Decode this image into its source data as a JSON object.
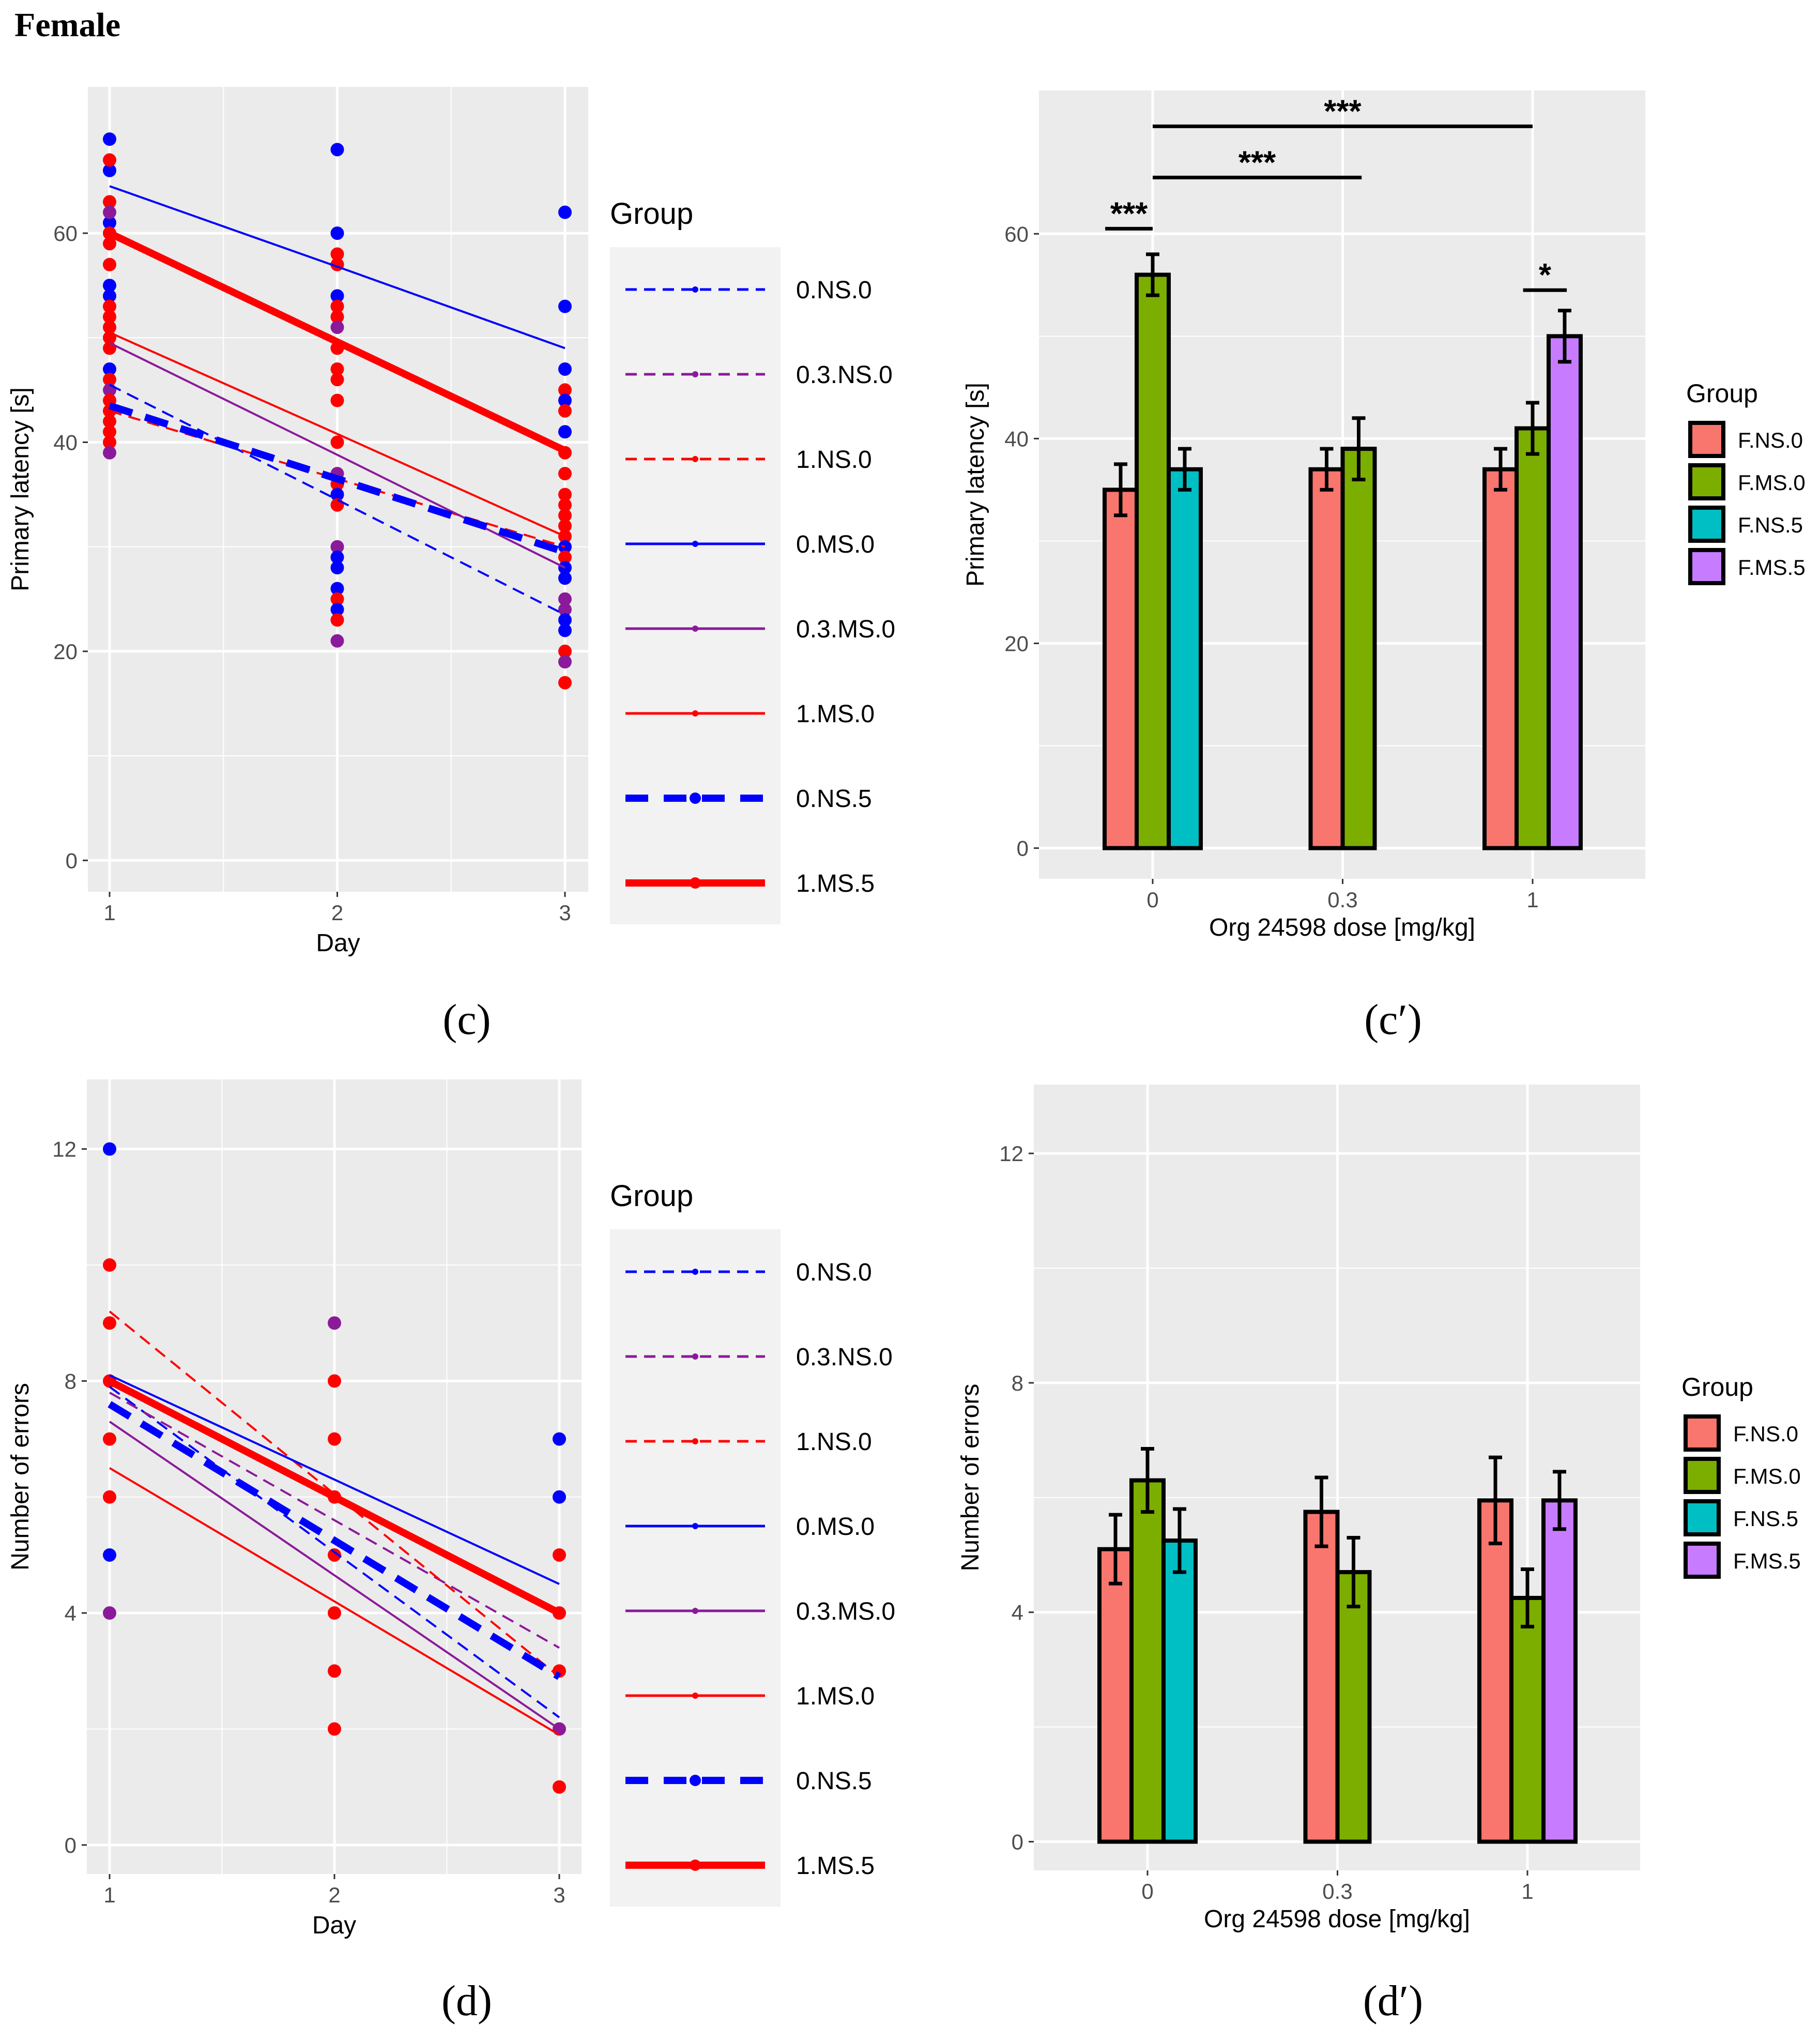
{
  "figure_title": "Female",
  "captions": [
    "(c)",
    "(c′)",
    "(d)",
    "(d′)"
  ],
  "legend_title": "Group",
  "colors": {
    "panel_bg": "#ebebeb",
    "grid": "#ffffff",
    "red": "#ff0000",
    "blue": "#0000ff",
    "purple": "#8b1a9a",
    "F.NS.0": "#f8766d",
    "F.MS.0": "#7cae00",
    "F.NS.5": "#00bfc4",
    "F.MS.5": "#c77cff"
  },
  "chart_data": [
    {
      "id": "c",
      "type": "line",
      "xlabel": "Day",
      "ylabel": "Primary latency [s]",
      "x": [
        1,
        2,
        3
      ],
      "x_ticks": [
        "1",
        "2",
        "3"
      ],
      "y_ticks": [
        "0",
        "20",
        "40",
        "60"
      ],
      "ylim": [
        -3,
        74
      ],
      "legend": {
        "title": "Group",
        "position": "right"
      },
      "series": [
        {
          "name": "0.NS.0",
          "color": "blue",
          "style": "dashed",
          "width": "thin",
          "values": [
            45.5,
            34.5,
            23.5
          ]
        },
        {
          "name": "0.3.NS.0",
          "color": "purple",
          "style": "dashed",
          "width": "thin",
          "values": [
            null,
            null,
            null
          ]
        },
        {
          "name": "1.NS.0",
          "color": "red",
          "style": "dashed",
          "width": "thin",
          "values": [
            43,
            36.5,
            30
          ]
        },
        {
          "name": "0.MS.0",
          "color": "blue",
          "style": "solid",
          "width": "thin",
          "values": [
            64.5,
            56.8,
            49
          ]
        },
        {
          "name": "0.3.MS.0",
          "color": "purple",
          "style": "solid",
          "width": "thin",
          "values": [
            49.5,
            38.8,
            28
          ]
        },
        {
          "name": "1.MS.0",
          "color": "red",
          "style": "solid",
          "width": "thin",
          "values": [
            50.5,
            40.8,
            31
          ]
        },
        {
          "name": "0.NS.5",
          "color": "blue",
          "style": "dashed",
          "width": "thick",
          "values": [
            43.5,
            36.5,
            29.5
          ]
        },
        {
          "name": "1.MS.5",
          "color": "red",
          "style": "solid",
          "width": "thick",
          "values": [
            60,
            49.6,
            39.2
          ]
        }
      ],
      "points": [
        {
          "x": 1,
          "y": 69,
          "c": "blue"
        },
        {
          "x": 1,
          "y": 66,
          "c": "blue"
        },
        {
          "x": 1,
          "y": 67,
          "c": "red"
        },
        {
          "x": 1,
          "y": 63,
          "c": "red"
        },
        {
          "x": 1,
          "y": 61,
          "c": "blue"
        },
        {
          "x": 1,
          "y": 62,
          "c": "purple"
        },
        {
          "x": 1,
          "y": 60,
          "c": "red"
        },
        {
          "x": 1,
          "y": 59,
          "c": "red"
        },
        {
          "x": 1,
          "y": 57,
          "c": "red"
        },
        {
          "x": 1,
          "y": 55,
          "c": "blue"
        },
        {
          "x": 1,
          "y": 54,
          "c": "blue"
        },
        {
          "x": 1,
          "y": 53,
          "c": "red"
        },
        {
          "x": 1,
          "y": 52,
          "c": "red"
        },
        {
          "x": 1,
          "y": 51,
          "c": "red"
        },
        {
          "x": 1,
          "y": 50,
          "c": "red"
        },
        {
          "x": 1,
          "y": 49,
          "c": "red"
        },
        {
          "x": 1,
          "y": 47,
          "c": "blue"
        },
        {
          "x": 1,
          "y": 46,
          "c": "red"
        },
        {
          "x": 1,
          "y": 45,
          "c": "purple"
        },
        {
          "x": 1,
          "y": 44,
          "c": "red"
        },
        {
          "x": 1,
          "y": 43,
          "c": "red"
        },
        {
          "x": 1,
          "y": 42,
          "c": "red"
        },
        {
          "x": 1,
          "y": 41,
          "c": "red"
        },
        {
          "x": 1,
          "y": 40,
          "c": "red"
        },
        {
          "x": 1,
          "y": 39,
          "c": "purple"
        },
        {
          "x": 2,
          "y": 68,
          "c": "blue"
        },
        {
          "x": 2,
          "y": 60,
          "c": "blue"
        },
        {
          "x": 2,
          "y": 58,
          "c": "red"
        },
        {
          "x": 2,
          "y": 57,
          "c": "red"
        },
        {
          "x": 2,
          "y": 54,
          "c": "blue"
        },
        {
          "x": 2,
          "y": 53,
          "c": "red"
        },
        {
          "x": 2,
          "y": 52,
          "c": "red"
        },
        {
          "x": 2,
          "y": 51,
          "c": "purple"
        },
        {
          "x": 2,
          "y": 49,
          "c": "red"
        },
        {
          "x": 2,
          "y": 47,
          "c": "red"
        },
        {
          "x": 2,
          "y": 46,
          "c": "red"
        },
        {
          "x": 2,
          "y": 44,
          "c": "red"
        },
        {
          "x": 2,
          "y": 40,
          "c": "red"
        },
        {
          "x": 2,
          "y": 37,
          "c": "purple"
        },
        {
          "x": 2,
          "y": 36,
          "c": "red"
        },
        {
          "x": 2,
          "y": 35,
          "c": "blue"
        },
        {
          "x": 2,
          "y": 34,
          "c": "red"
        },
        {
          "x": 2,
          "y": 30,
          "c": "purple"
        },
        {
          "x": 2,
          "y": 29,
          "c": "blue"
        },
        {
          "x": 2,
          "y": 28,
          "c": "blue"
        },
        {
          "x": 2,
          "y": 26,
          "c": "blue"
        },
        {
          "x": 2,
          "y": 25,
          "c": "red"
        },
        {
          "x": 2,
          "y": 24,
          "c": "blue"
        },
        {
          "x": 2,
          "y": 23,
          "c": "red"
        },
        {
          "x": 2,
          "y": 21,
          "c": "purple"
        },
        {
          "x": 3,
          "y": 62,
          "c": "blue"
        },
        {
          "x": 3,
          "y": 53,
          "c": "blue"
        },
        {
          "x": 3,
          "y": 47,
          "c": "blue"
        },
        {
          "x": 3,
          "y": 45,
          "c": "red"
        },
        {
          "x": 3,
          "y": 44,
          "c": "blue"
        },
        {
          "x": 3,
          "y": 43,
          "c": "red"
        },
        {
          "x": 3,
          "y": 41,
          "c": "blue"
        },
        {
          "x": 3,
          "y": 39,
          "c": "red"
        },
        {
          "x": 3,
          "y": 37,
          "c": "red"
        },
        {
          "x": 3,
          "y": 35,
          "c": "red"
        },
        {
          "x": 3,
          "y": 34,
          "c": "red"
        },
        {
          "x": 3,
          "y": 33,
          "c": "red"
        },
        {
          "x": 3,
          "y": 32,
          "c": "red"
        },
        {
          "x": 3,
          "y": 31,
          "c": "red"
        },
        {
          "x": 3,
          "y": 30,
          "c": "blue"
        },
        {
          "x": 3,
          "y": 29,
          "c": "red"
        },
        {
          "x": 3,
          "y": 28,
          "c": "blue"
        },
        {
          "x": 3,
          "y": 27,
          "c": "blue"
        },
        {
          "x": 3,
          "y": 25,
          "c": "purple"
        },
        {
          "x": 3,
          "y": 24,
          "c": "purple"
        },
        {
          "x": 3,
          "y": 23,
          "c": "blue"
        },
        {
          "x": 3,
          "y": 22,
          "c": "blue"
        },
        {
          "x": 3,
          "y": 20,
          "c": "red"
        },
        {
          "x": 3,
          "y": 19,
          "c": "purple"
        },
        {
          "x": 3,
          "y": 17,
          "c": "red"
        }
      ]
    },
    {
      "id": "c_prime",
      "type": "bar",
      "xlabel": "Org 24598 dose [mg/kg]",
      "ylabel": "Primary latency [s]",
      "categories": [
        "0",
        "0.3",
        "1"
      ],
      "y_ticks": [
        "0",
        "20",
        "40",
        "60"
      ],
      "ylim": [
        -3,
        74
      ],
      "legend": {
        "title": "Group",
        "position": "right",
        "entries": [
          "F.NS.0",
          "F.MS.0",
          "F.NS.5",
          "F.MS.5"
        ]
      },
      "bars": [
        {
          "category": "0",
          "group": "F.NS.0",
          "value": 35,
          "err": 2.5
        },
        {
          "category": "0",
          "group": "F.MS.0",
          "value": 56,
          "err": 2
        },
        {
          "category": "0",
          "group": "F.NS.5",
          "value": 37,
          "err": 2
        },
        {
          "category": "0.3",
          "group": "F.NS.0",
          "value": 37,
          "err": 2
        },
        {
          "category": "0.3",
          "group": "F.MS.0",
          "value": 39,
          "err": 3
        },
        {
          "category": "1",
          "group": "F.NS.0",
          "value": 37,
          "err": 2
        },
        {
          "category": "1",
          "group": "F.MS.0",
          "value": 41,
          "err": 2.5
        },
        {
          "category": "1",
          "group": "F.MS.5",
          "value": 50,
          "err": 2.5
        }
      ],
      "annotations": [
        {
          "label": "***",
          "x_from": -0.25,
          "x_to": 0.0,
          "y": 60.5
        },
        {
          "label": "***",
          "x_from": 0.0,
          "x_to": 1.1,
          "y": 65.5
        },
        {
          "label": "***",
          "x_from": 0.0,
          "x_to": 2.0,
          "y": 70.5
        },
        {
          "label": "*",
          "x_from": 1.95,
          "x_to": 2.18,
          "y": 54.5
        }
      ]
    },
    {
      "id": "d",
      "type": "line",
      "xlabel": "Day",
      "ylabel": "Number of errors",
      "x": [
        1,
        2,
        3
      ],
      "x_ticks": [
        "1",
        "2",
        "3"
      ],
      "y_ticks": [
        "0",
        "4",
        "8",
        "12"
      ],
      "ylim": [
        -0.5,
        13.2
      ],
      "legend": {
        "title": "Group",
        "position": "right"
      },
      "series": [
        {
          "name": "0.NS.0",
          "color": "blue",
          "style": "dashed",
          "width": "thin",
          "values": [
            7.9,
            5.05,
            2.2
          ]
        },
        {
          "name": "0.3.NS.0",
          "color": "purple",
          "style": "dashed",
          "width": "thin",
          "values": [
            7.8,
            5.6,
            3.4
          ]
        },
        {
          "name": "1.NS.0",
          "color": "red",
          "style": "dashed",
          "width": "thin",
          "values": [
            9.2,
            6.05,
            2.9
          ]
        },
        {
          "name": "0.MS.0",
          "color": "blue",
          "style": "solid",
          "width": "thin",
          "values": [
            8.1,
            6.3,
            4.5
          ]
        },
        {
          "name": "0.3.MS.0",
          "color": "purple",
          "style": "solid",
          "width": "thin",
          "values": [
            7.3,
            4.65,
            2.0
          ]
        },
        {
          "name": "1.MS.0",
          "color": "red",
          "style": "solid",
          "width": "thin",
          "values": [
            6.5,
            4.2,
            1.9
          ]
        },
        {
          "name": "0.NS.5",
          "color": "blue",
          "style": "dashed",
          "width": "thick",
          "values": [
            7.6,
            5.25,
            2.9
          ]
        },
        {
          "name": "1.MS.5",
          "color": "red",
          "style": "solid",
          "width": "thick",
          "values": [
            8.0,
            6.0,
            4.0
          ]
        }
      ],
      "points": [
        {
          "x": 1,
          "y": 12,
          "c": "blue"
        },
        {
          "x": 1,
          "y": 10,
          "c": "red"
        },
        {
          "x": 1,
          "y": 9,
          "c": "red"
        },
        {
          "x": 1,
          "y": 8,
          "c": "red"
        },
        {
          "x": 1,
          "y": 7,
          "c": "red"
        },
        {
          "x": 1,
          "y": 6,
          "c": "red"
        },
        {
          "x": 1,
          "y": 5,
          "c": "blue"
        },
        {
          "x": 1,
          "y": 4,
          "c": "purple"
        },
        {
          "x": 2,
          "y": 9,
          "c": "purple"
        },
        {
          "x": 2,
          "y": 8,
          "c": "red"
        },
        {
          "x": 2,
          "y": 7,
          "c": "red"
        },
        {
          "x": 2,
          "y": 6,
          "c": "red"
        },
        {
          "x": 2,
          "y": 5,
          "c": "red"
        },
        {
          "x": 2,
          "y": 4,
          "c": "red"
        },
        {
          "x": 2,
          "y": 3,
          "c": "red"
        },
        {
          "x": 2,
          "y": 2,
          "c": "red"
        },
        {
          "x": 3,
          "y": 7,
          "c": "blue"
        },
        {
          "x": 3,
          "y": 6,
          "c": "blue"
        },
        {
          "x": 3,
          "y": 5,
          "c": "red"
        },
        {
          "x": 3,
          "y": 4,
          "c": "red"
        },
        {
          "x": 3,
          "y": 3,
          "c": "red"
        },
        {
          "x": 3,
          "y": 2,
          "c": "purple"
        },
        {
          "x": 3,
          "y": 1,
          "c": "red"
        }
      ]
    },
    {
      "id": "d_prime",
      "type": "bar",
      "xlabel": "Org 24598 dose [mg/kg]",
      "ylabel": "Number of errors",
      "categories": [
        "0",
        "0.3",
        "1"
      ],
      "y_ticks": [
        "0",
        "4",
        "8",
        "12"
      ],
      "ylim": [
        -0.5,
        13.2
      ],
      "legend": {
        "title": "Group",
        "position": "right",
        "entries": [
          "F.NS.0",
          "F.MS.0",
          "F.NS.5",
          "F.MS.5"
        ]
      },
      "bars": [
        {
          "category": "0",
          "group": "F.NS.0",
          "value": 5.1,
          "err": 0.6
        },
        {
          "category": "0",
          "group": "F.MS.0",
          "value": 6.3,
          "err": 0.55
        },
        {
          "category": "0",
          "group": "F.NS.5",
          "value": 5.25,
          "err": 0.55
        },
        {
          "category": "0.3",
          "group": "F.NS.0",
          "value": 5.75,
          "err": 0.6
        },
        {
          "category": "0.3",
          "group": "F.MS.0",
          "value": 4.7,
          "err": 0.6
        },
        {
          "category": "1",
          "group": "F.NS.0",
          "value": 5.95,
          "err": 0.75
        },
        {
          "category": "1",
          "group": "F.MS.0",
          "value": 4.25,
          "err": 0.5
        },
        {
          "category": "1",
          "group": "F.MS.5",
          "value": 5.95,
          "err": 0.5
        }
      ],
      "annotations": []
    }
  ]
}
